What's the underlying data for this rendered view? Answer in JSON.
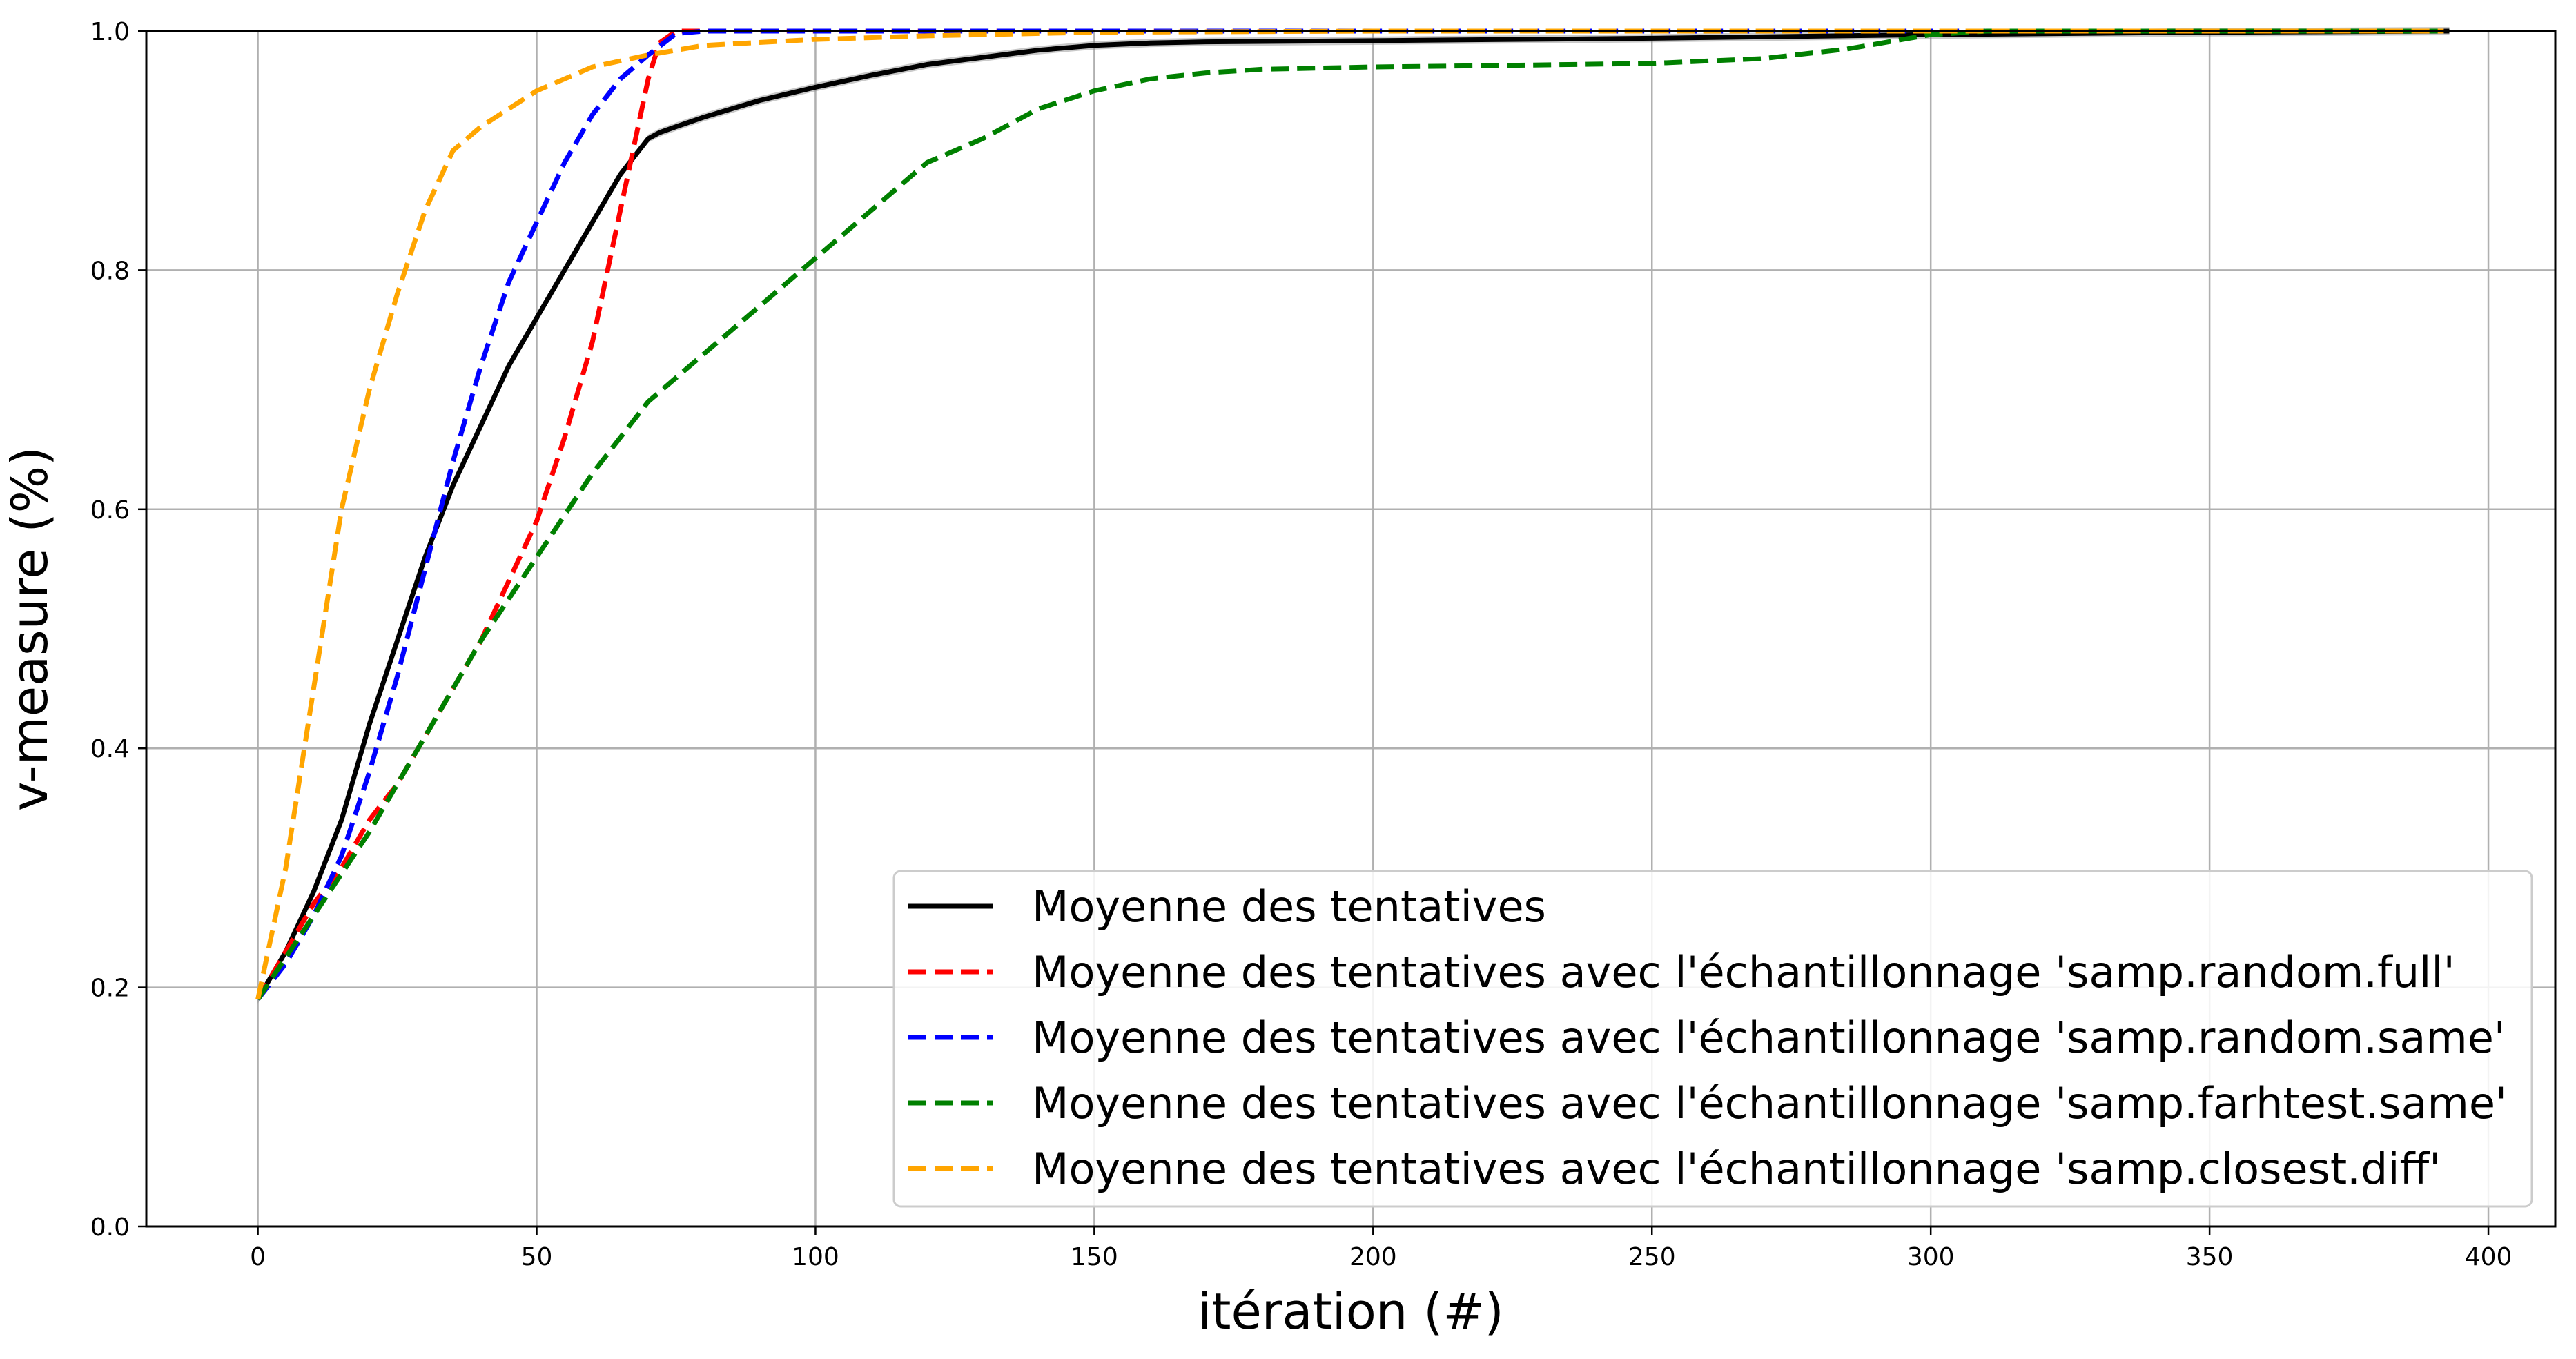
{
  "chart_data": {
    "type": "line",
    "xlabel": "itération (#)",
    "ylabel": "v-measure (%)",
    "xlim": [
      -20,
      412
    ],
    "ylim": [
      0.0,
      1.0
    ],
    "xticks": [
      0,
      50,
      100,
      150,
      200,
      250,
      300,
      350,
      400
    ],
    "yticks": [
      0.0,
      0.2,
      0.4,
      0.6,
      0.8,
      1.0
    ],
    "xtick_labels": [
      "0",
      "50",
      "100",
      "150",
      "200",
      "250",
      "300",
      "350",
      "400"
    ],
    "ytick_labels": [
      "0.0",
      "0.2",
      "0.4",
      "0.6",
      "0.8",
      "1.0"
    ],
    "grid": true,
    "legend_position": "bottom-right",
    "series": [
      {
        "name": "Moyenne des tentatives",
        "color": "#000000",
        "style": "solid",
        "band": true,
        "x": [
          0,
          5,
          10,
          15,
          20,
          25,
          30,
          35,
          40,
          45,
          50,
          55,
          60,
          65,
          70,
          72,
          75,
          80,
          90,
          100,
          110,
          120,
          130,
          140,
          150,
          160,
          170,
          200,
          250,
          300,
          350,
          393
        ],
        "y": [
          0.19,
          0.23,
          0.28,
          0.34,
          0.42,
          0.49,
          0.56,
          0.62,
          0.67,
          0.72,
          0.76,
          0.8,
          0.84,
          0.88,
          0.91,
          0.915,
          0.92,
          0.928,
          0.942,
          0.953,
          0.963,
          0.972,
          0.978,
          0.984,
          0.988,
          0.99,
          0.991,
          0.992,
          0.994,
          0.997,
          0.999,
          1.0
        ]
      },
      {
        "name": "Moyenne des tentatives avec l'échantillonnage 'samp.random.full'",
        "color": "#ff0000",
        "style": "dashed",
        "x": [
          0,
          5,
          10,
          15,
          20,
          25,
          30,
          35,
          40,
          45,
          50,
          55,
          60,
          65,
          70,
          72,
          75,
          80,
          100,
          150,
          200,
          300,
          392
        ],
        "y": [
          0.19,
          0.23,
          0.27,
          0.3,
          0.34,
          0.37,
          0.41,
          0.45,
          0.49,
          0.54,
          0.59,
          0.66,
          0.74,
          0.85,
          0.96,
          0.99,
          1.0,
          1.0,
          1.0,
          1.0,
          1.0,
          1.0,
          1.0
        ]
      },
      {
        "name": "Moyenne des tentatives avec l'échantillonnage 'samp.random.same'",
        "color": "#0000ff",
        "style": "dashed",
        "x": [
          0,
          5,
          10,
          15,
          20,
          25,
          30,
          35,
          40,
          45,
          50,
          55,
          60,
          65,
          70,
          75,
          80,
          100,
          150,
          200,
          300,
          392
        ],
        "y": [
          0.19,
          0.22,
          0.26,
          0.31,
          0.38,
          0.46,
          0.55,
          0.64,
          0.72,
          0.79,
          0.84,
          0.89,
          0.93,
          0.96,
          0.98,
          0.998,
          1.0,
          1.0,
          1.0,
          1.0,
          1.0,
          1.0
        ]
      },
      {
        "name": "Moyenne des tentatives avec l'échantillonnage 'samp.farhtest.same'",
        "color": "#008000",
        "style": "dashed",
        "x": [
          0,
          10,
          20,
          30,
          40,
          50,
          60,
          70,
          80,
          90,
          100,
          110,
          120,
          130,
          140,
          150,
          160,
          170,
          180,
          200,
          220,
          250,
          270,
          285,
          295,
          300,
          310,
          392
        ],
        "y": [
          0.19,
          0.26,
          0.33,
          0.41,
          0.49,
          0.56,
          0.63,
          0.69,
          0.73,
          0.77,
          0.81,
          0.85,
          0.89,
          0.91,
          0.935,
          0.95,
          0.96,
          0.965,
          0.968,
          0.97,
          0.971,
          0.973,
          0.977,
          0.985,
          0.993,
          0.997,
          1.0,
          1.0
        ]
      },
      {
        "name": "Moyenne des tentatives avec l'échantillonnage 'samp.closest.diff'",
        "color": "#ffa500",
        "style": "dashed",
        "x": [
          0,
          5,
          10,
          15,
          20,
          25,
          30,
          35,
          40,
          45,
          50,
          55,
          60,
          70,
          80,
          100,
          120,
          150,
          200,
          300,
          392
        ],
        "y": [
          0.19,
          0.3,
          0.45,
          0.6,
          0.7,
          0.78,
          0.85,
          0.9,
          0.92,
          0.935,
          0.95,
          0.96,
          0.97,
          0.98,
          0.988,
          0.993,
          0.996,
          0.999,
          1.0,
          1.0,
          1.0
        ]
      }
    ]
  }
}
